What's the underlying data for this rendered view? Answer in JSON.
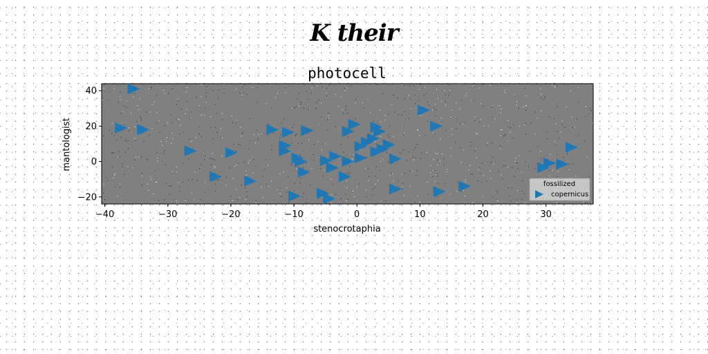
{
  "page": {
    "suptitle": "K their"
  },
  "chart_data": {
    "type": "scatter",
    "title": "photocell",
    "xlabel": "stenocrotaphia",
    "ylabel": "mantologist",
    "xlim": [
      -40.5,
      37.5
    ],
    "ylim": [
      -24,
      44
    ],
    "xticks": [
      -40,
      -30,
      -20,
      -10,
      0,
      10,
      20,
      30
    ],
    "yticks": [
      -20,
      0,
      20,
      40
    ],
    "grid": false,
    "background": "#808080",
    "legend": {
      "title": "fossilized",
      "placement": "lower-right"
    },
    "series": [
      {
        "name": "copernicus",
        "color": "#1f77b4",
        "marker": "triangle-right",
        "points": [
          [
            -35.5,
            41
          ],
          [
            -37.5,
            19
          ],
          [
            -34,
            18
          ],
          [
            -26.5,
            6
          ],
          [
            -22.5,
            -8.5
          ],
          [
            -20,
            5
          ],
          [
            -17,
            -11
          ],
          [
            -13.5,
            18
          ],
          [
            -11,
            16.5
          ],
          [
            -8,
            17.5
          ],
          [
            -11.5,
            9
          ],
          [
            -11.5,
            6
          ],
          [
            -9.5,
            2
          ],
          [
            -9,
            0
          ],
          [
            -8.5,
            -6
          ],
          [
            -10,
            -19.5
          ],
          [
            -5.5,
            -18
          ],
          [
            -4.5,
            -21
          ],
          [
            -5,
            0.5
          ],
          [
            -4,
            -3.5
          ],
          [
            -3.5,
            3
          ],
          [
            -2,
            -8.5
          ],
          [
            -1.5,
            0
          ],
          [
            -1.5,
            17
          ],
          [
            -0.5,
            21
          ],
          [
            0.5,
            8.5
          ],
          [
            0.5,
            2
          ],
          [
            1.5,
            11
          ],
          [
            2.5,
            13
          ],
          [
            3,
            19.5
          ],
          [
            3.5,
            17
          ],
          [
            3,
            5.5
          ],
          [
            4,
            7
          ],
          [
            5,
            9.5
          ],
          [
            6,
            1.5
          ],
          [
            6,
            -15.5
          ],
          [
            10.5,
            29
          ],
          [
            12.5,
            20
          ],
          [
            13,
            -17
          ],
          [
            17,
            -14
          ],
          [
            29.5,
            -3.5
          ],
          [
            30.5,
            -1
          ],
          [
            32.5,
            -1.5
          ],
          [
            34,
            8
          ]
        ]
      }
    ]
  }
}
